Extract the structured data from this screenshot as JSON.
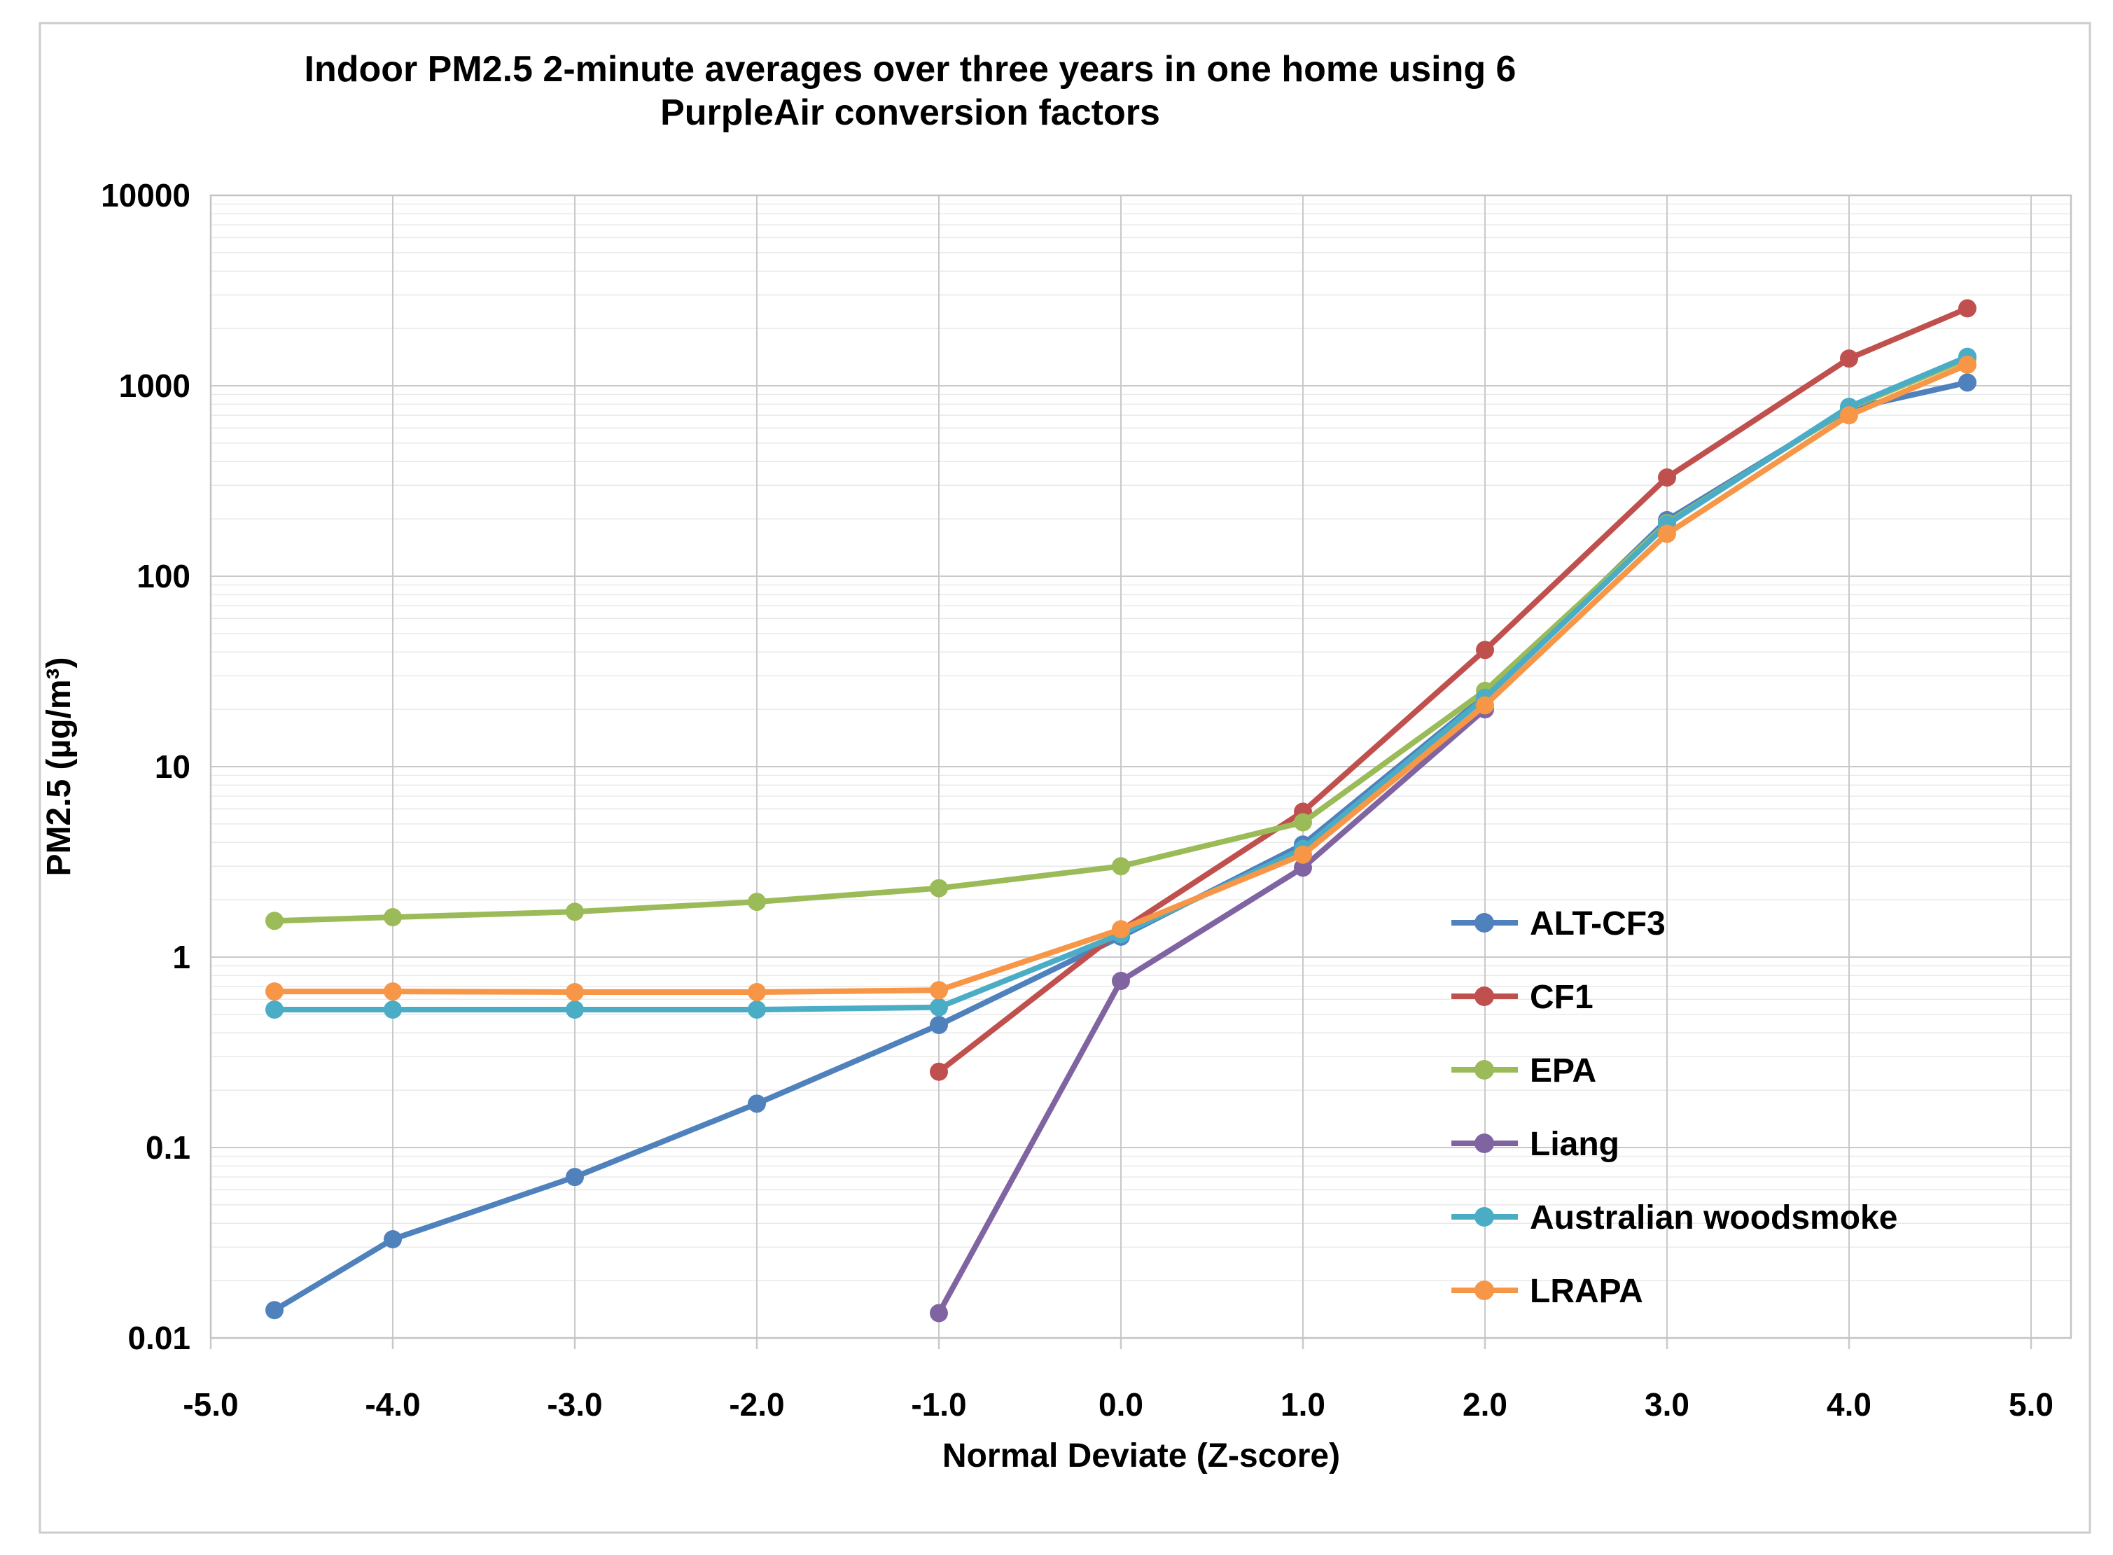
{
  "colors": {
    "frame": "#cccccc",
    "plot_border": "#c4c4c4",
    "grid_major": "#c9c9c9",
    "grid_minor": "#e9e9e9",
    "text": "#000000"
  },
  "chart_data": {
    "type": "line",
    "title": "Indoor PM2.5 2-minute averages over three years in one home using 6 PurpleAir conversion factors",
    "title_line1": "Indoor PM2.5 2-minute averages over three years in one home using 6",
    "title_line2": "PurpleAir conversion factors",
    "xlabel": "Normal Deviate (Z-score)",
    "ylabel": "PM2.5 (µg/m³)",
    "x_range": [
      -5.0,
      5.0
    ],
    "y_scale": "log",
    "y_range": [
      0.01,
      10000
    ],
    "x_ticks": [
      "-5.0",
      "-4.0",
      "-3.0",
      "-2.0",
      "-1.0",
      "0.0",
      "1.0",
      "2.0",
      "3.0",
      "4.0",
      "5.0"
    ],
    "x_tick_values": [
      -5,
      -4,
      -3,
      -2,
      -1,
      0,
      1,
      2,
      3,
      4,
      5
    ],
    "y_ticks": [
      "10000",
      "1000",
      "100",
      "10",
      "1",
      "0.1",
      "0.01"
    ],
    "y_tick_values": [
      10000,
      1000,
      100,
      10,
      1,
      0.1,
      0.01
    ],
    "grid": {
      "major": true,
      "minor_log": true
    },
    "legend_position": "inside-right",
    "series": [
      {
        "name": "ALT-CF3",
        "color": "#4F81BD",
        "points": [
          [
            -4.65,
            0.014
          ],
          [
            -4,
            0.033
          ],
          [
            -3,
            0.07
          ],
          [
            -2,
            0.17
          ],
          [
            -1,
            0.44
          ],
          [
            0,
            1.28
          ],
          [
            1,
            3.9
          ],
          [
            2,
            23.5
          ],
          [
            3,
            197
          ],
          [
            4,
            755
          ],
          [
            4.65,
            1040
          ]
        ]
      },
      {
        "name": "CF1",
        "color": "#C0504D",
        "points": [
          [
            -1,
            0.25
          ],
          [
            0,
            1.38
          ],
          [
            1,
            5.8
          ],
          [
            2,
            41
          ],
          [
            3,
            330
          ],
          [
            4,
            1390
          ],
          [
            4.65,
            2550
          ]
        ]
      },
      {
        "name": "EPA",
        "color": "#9BBB59",
        "points": [
          [
            -4.65,
            1.55
          ],
          [
            -4,
            1.62
          ],
          [
            -3,
            1.73
          ],
          [
            -2,
            1.95
          ],
          [
            -1,
            2.3
          ],
          [
            0,
            3.0
          ],
          [
            1,
            5.1
          ],
          [
            2,
            25
          ],
          [
            3,
            190
          ],
          [
            4,
            765
          ],
          [
            4.65,
            1390
          ]
        ]
      },
      {
        "name": "Liang",
        "color": "#8064A2",
        "points": [
          [
            -1,
            0.0135
          ],
          [
            0,
            0.75
          ],
          [
            1,
            2.95
          ],
          [
            2,
            20
          ]
        ]
      },
      {
        "name": "Australian woodsmoke",
        "color": "#4BACC6",
        "points": [
          [
            -4.65,
            0.53
          ],
          [
            -4,
            0.53
          ],
          [
            -3,
            0.53
          ],
          [
            -2,
            0.53
          ],
          [
            -1,
            0.545
          ],
          [
            0,
            1.32
          ],
          [
            1,
            3.7
          ],
          [
            2,
            23
          ],
          [
            3,
            187
          ],
          [
            4,
            775
          ],
          [
            4.65,
            1420
          ]
        ]
      },
      {
        "name": "LRAPA",
        "color": "#F79646",
        "points": [
          [
            -4.65,
            0.66
          ],
          [
            -4,
            0.66
          ],
          [
            -3,
            0.655
          ],
          [
            -2,
            0.655
          ],
          [
            -1,
            0.67
          ],
          [
            0,
            1.4
          ],
          [
            1,
            3.45
          ],
          [
            2,
            21
          ],
          [
            3,
            167
          ],
          [
            4,
            700
          ],
          [
            4.65,
            1290
          ]
        ]
      }
    ]
  }
}
